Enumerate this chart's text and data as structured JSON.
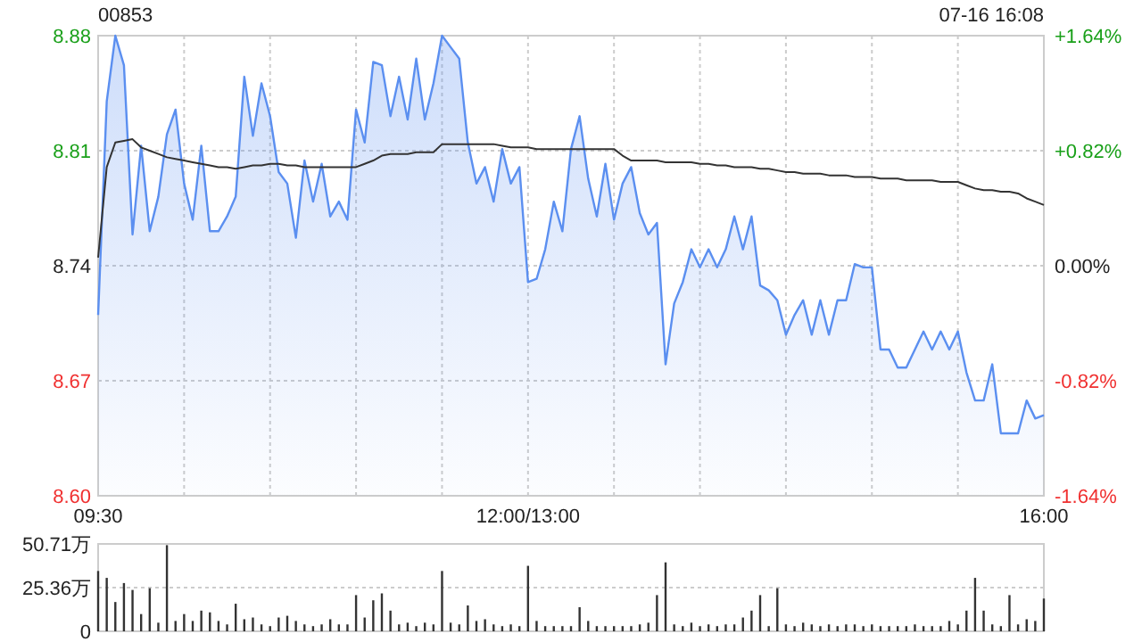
{
  "chart_data": [
    {
      "type": "area",
      "title": "00853",
      "annotations": [
        "07-16 16:08"
      ],
      "grid": true,
      "categories": [
        "09:30",
        null,
        null,
        null,
        null,
        null,
        null,
        null,
        null,
        null,
        null,
        null,
        null,
        null,
        null,
        null,
        null,
        null,
        null,
        null,
        null,
        null,
        null,
        null,
        null,
        null,
        null,
        null,
        null,
        null,
        null,
        null,
        null,
        null,
        null,
        null,
        null,
        null,
        null,
        null,
        null,
        null,
        null,
        null,
        null,
        null,
        null,
        null,
        null,
        null,
        "12:00/13:00",
        null,
        null,
        null,
        null,
        null,
        null,
        null,
        null,
        null,
        null,
        null,
        null,
        null,
        null,
        null,
        null,
        null,
        null,
        null,
        null,
        null,
        null,
        null,
        null,
        null,
        null,
        null,
        null,
        null,
        null,
        null,
        null,
        null,
        null,
        null,
        null,
        null,
        null,
        null,
        null,
        null,
        null,
        null,
        null,
        null,
        null,
        null,
        null,
        null,
        null,
        null,
        null,
        null,
        null,
        null,
        null,
        null,
        null,
        null,
        "16:00"
      ],
      "ylim": [
        8.6,
        8.88
      ],
      "yticks": [
        {
          "value": 8.6,
          "label": "8.60"
        },
        {
          "value": 8.67,
          "label": "8.67"
        },
        {
          "value": 8.74,
          "label": "8.74"
        },
        {
          "value": 8.81,
          "label": "8.81"
        },
        {
          "value": 8.88,
          "label": "8.88"
        }
      ],
      "y2lim": [
        -1.64,
        1.64
      ],
      "y2ticks": [
        {
          "value": -1.64,
          "label": "-1.64%"
        },
        {
          "value": -0.82,
          "label": "-0.82%"
        },
        {
          "value": 0,
          "label": "0.00%"
        },
        {
          "value": 0.82,
          "label": "+0.82%"
        },
        {
          "value": 1.64,
          "label": "+1.64%"
        }
      ],
      "series": [
        {
          "type": "area",
          "color": "#5b8ff0",
          "values": [
            8.71,
            8.84,
            8.88,
            8.862,
            8.759,
            8.813,
            8.761,
            8.782,
            8.82,
            8.835,
            8.79,
            8.768,
            8.813,
            8.761,
            8.761,
            8.77,
            8.782,
            8.855,
            8.819,
            8.851,
            8.831,
            8.797,
            8.79,
            8.757,
            8.804,
            8.779,
            8.802,
            8.77,
            8.779,
            8.768,
            8.835,
            8.815,
            8.864,
            8.862,
            8.831,
            8.855,
            8.829,
            8.866,
            8.829,
            8.851,
            8.88,
            8.873,
            8.866,
            8.815,
            8.79,
            8.8,
            8.779,
            8.811,
            8.79,
            8.8,
            8.73,
            8.732,
            8.75,
            8.779,
            8.761,
            8.811,
            8.831,
            8.793,
            8.77,
            8.802,
            8.768,
            8.79,
            8.8,
            8.772,
            8.759,
            8.766,
            8.68,
            8.717,
            8.73,
            8.75,
            8.739,
            8.75,
            8.739,
            8.75,
            8.77,
            8.75,
            8.77,
            8.728,
            8.725,
            8.719,
            8.698,
            8.71,
            8.719,
            8.698,
            8.719,
            8.698,
            8.719,
            8.719,
            8.741,
            8.739,
            8.739,
            8.689,
            8.689,
            8.678,
            8.678,
            8.689,
            8.7,
            8.689,
            8.7,
            8.689,
            8.7,
            8.675,
            8.658,
            8.658,
            8.68,
            8.638,
            8.638,
            8.638,
            8.658,
            8.647,
            8.649
          ]
        },
        {
          "type": "line",
          "color": "#333333",
          "values": [
            8.745,
            8.8,
            8.815,
            8.816,
            8.817,
            8.812,
            8.81,
            8.808,
            8.806,
            8.805,
            8.804,
            8.803,
            8.802,
            8.801,
            8.8,
            8.8,
            8.799,
            8.8,
            8.801,
            8.801,
            8.802,
            8.802,
            8.801,
            8.801,
            8.8,
            8.8,
            8.8,
            8.8,
            8.8,
            8.8,
            8.8,
            8.802,
            8.804,
            8.807,
            8.808,
            8.808,
            8.808,
            8.809,
            8.809,
            8.809,
            8.814,
            8.814,
            8.814,
            8.814,
            8.814,
            8.814,
            8.814,
            8.813,
            8.812,
            8.812,
            8.812,
            8.811,
            8.811,
            8.811,
            8.811,
            8.811,
            8.811,
            8.811,
            8.811,
            8.811,
            8.811,
            8.807,
            8.804,
            8.804,
            8.804,
            8.804,
            8.803,
            8.803,
            8.803,
            8.803,
            8.802,
            8.802,
            8.801,
            8.801,
            8.8,
            8.8,
            8.8,
            8.799,
            8.799,
            8.798,
            8.797,
            8.797,
            8.796,
            8.796,
            8.796,
            8.795,
            8.795,
            8.795,
            8.794,
            8.794,
            8.794,
            8.793,
            8.793,
            8.793,
            8.792,
            8.792,
            8.792,
            8.792,
            8.791,
            8.791,
            8.791,
            8.789,
            8.787,
            8.786,
            8.786,
            8.785,
            8.785,
            8.784,
            8.781,
            8.779,
            8.777
          ]
        }
      ]
    },
    {
      "type": "bar",
      "grid": "y",
      "tick_labels": "y",
      "categories": [
        null,
        null,
        null,
        null,
        null,
        null,
        null,
        null,
        null,
        null,
        null,
        null,
        null,
        null,
        null,
        null,
        null,
        null,
        null,
        null,
        null,
        null,
        null,
        null,
        null,
        null,
        null,
        null,
        null,
        null,
        null,
        null,
        null,
        null,
        null,
        null,
        null,
        null,
        null,
        null,
        null,
        null,
        null,
        null,
        null,
        null,
        null,
        null,
        null,
        null,
        null,
        null,
        null,
        null,
        null,
        null,
        null,
        null,
        null,
        null,
        null,
        null,
        null,
        null,
        null,
        null,
        null,
        null,
        null,
        null,
        null,
        null,
        null,
        null,
        null,
        null,
        null,
        null,
        null,
        null,
        null,
        null,
        null,
        null,
        null,
        null,
        null,
        null,
        null,
        null,
        null,
        null,
        null,
        null,
        null,
        null,
        null,
        null,
        null,
        null,
        null,
        null,
        null,
        null,
        null,
        null,
        null,
        null,
        null,
        null,
        null
      ],
      "ylim": [
        0,
        50.71
      ],
      "yticks": [
        {
          "value": 0,
          "label": "0"
        },
        {
          "value": 25.36,
          "label": "25.36万"
        },
        {
          "value": 50.71,
          "label": "50.71万"
        }
      ],
      "series": [
        {
          "color": "#333333",
          "values": [
            35,
            31,
            17,
            28,
            24,
            10,
            25,
            5,
            50,
            6,
            10,
            6,
            12,
            11,
            6,
            4,
            16,
            7,
            8,
            4,
            3,
            8,
            9,
            6,
            4,
            3,
            4,
            7,
            4,
            4,
            21,
            8,
            18,
            22,
            12,
            4,
            5,
            3,
            5,
            4,
            35,
            5,
            4,
            15,
            6,
            7,
            4,
            3,
            4,
            3,
            38,
            6,
            3,
            3,
            3,
            3,
            14,
            6,
            3,
            3,
            3,
            3,
            3,
            4,
            5,
            21,
            40,
            4,
            3,
            5,
            3,
            4,
            3,
            4,
            4,
            8,
            12,
            21,
            3,
            25,
            4,
            3,
            5,
            4,
            3,
            4,
            3,
            4,
            4,
            3,
            4,
            3,
            3,
            3,
            3,
            4,
            3,
            3,
            3,
            6,
            4,
            12,
            31,
            12,
            4,
            3,
            21,
            4,
            7,
            6,
            19
          ]
        }
      ]
    }
  ]
}
